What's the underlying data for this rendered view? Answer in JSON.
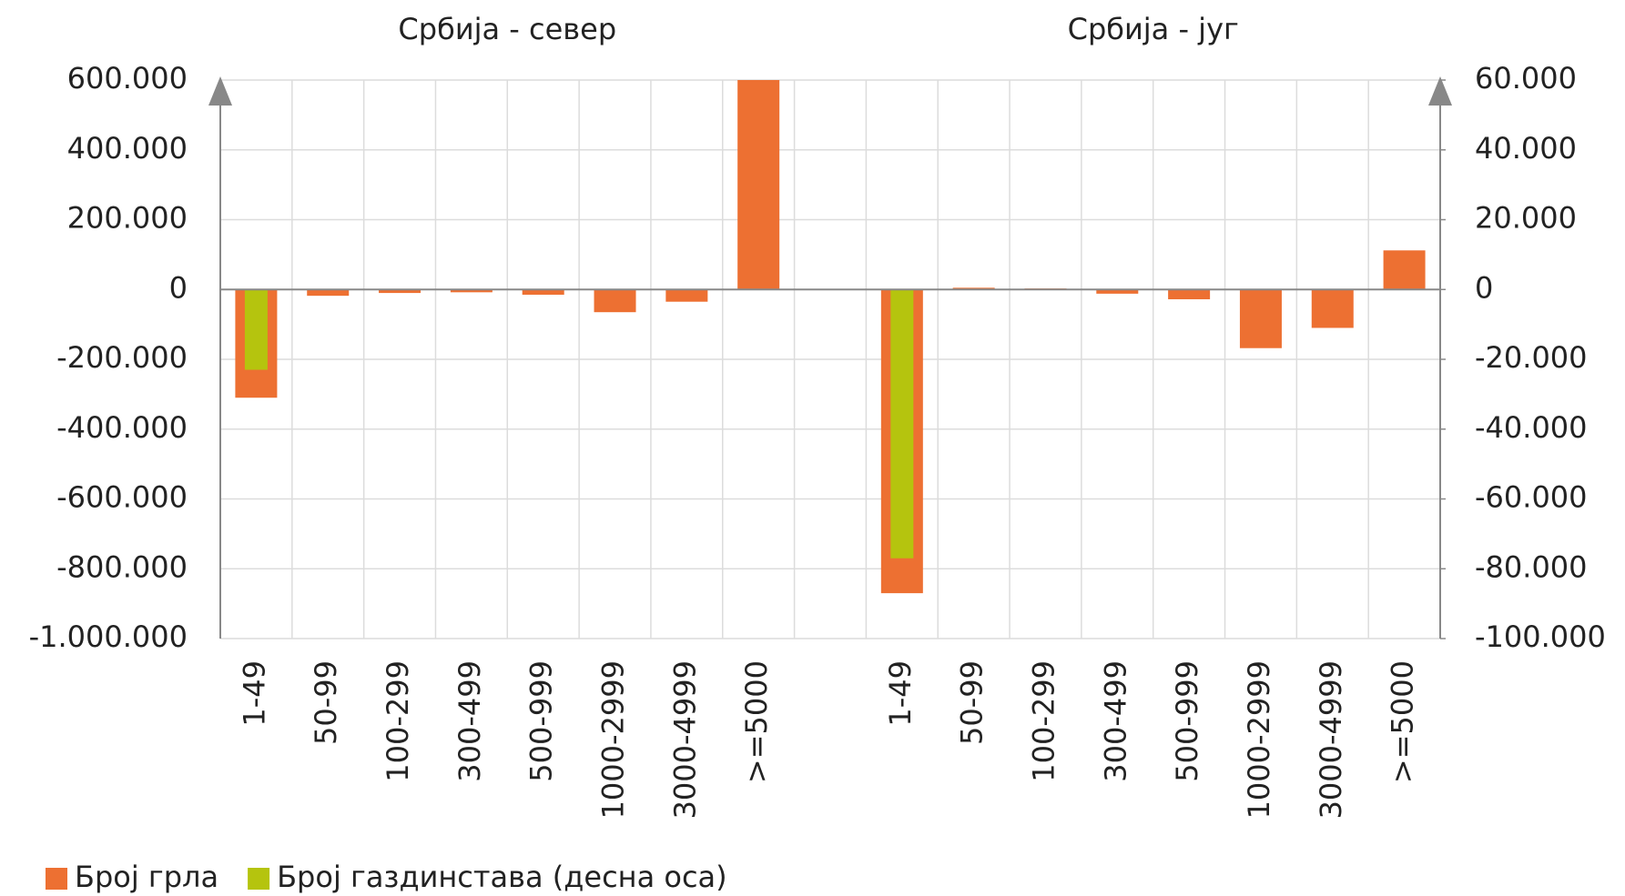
{
  "chart_data": {
    "type": "bar",
    "panel_titles": [
      "Србија - север",
      "Србија - југ"
    ],
    "categories": [
      "1-49",
      "50-99",
      "100-299",
      "300-499",
      "500-999",
      "1000-2999",
      "3000-4999",
      ">=5000",
      null,
      "1-49",
      "50-99",
      "100-299",
      "300-499",
      "500-999",
      "1000-2999",
      "3000-4999",
      ">=5000"
    ],
    "series": [
      {
        "name": "Број грла",
        "color": "#ed7032",
        "values": [
          -310000,
          -18000,
          -10000,
          -8000,
          -15000,
          -65000,
          -35000,
          600000,
          null,
          -870000,
          5000,
          3000,
          -12000,
          -28000,
          -168000,
          -110000,
          112000
        ]
      },
      {
        "name": "Број газдинстава (десна оса)",
        "color": "#b5c40e",
        "axis": "y2",
        "values": [
          -23000,
          0,
          0,
          0,
          0,
          0,
          0,
          0,
          null,
          -77000,
          0,
          0,
          0,
          0,
          0,
          0,
          0
        ]
      }
    ],
    "ylim": [
      -1000000,
      600000
    ],
    "yticks": [
      {
        "value": -1000000,
        "label": "-1.000.000"
      },
      {
        "value": -800000,
        "label": "-800.000"
      },
      {
        "value": -600000,
        "label": "-600.000"
      },
      {
        "value": -400000,
        "label": "-400.000"
      },
      {
        "value": -200000,
        "label": "-200.000"
      },
      0,
      {
        "value": 200000,
        "label": "200.000"
      },
      {
        "value": 400000,
        "label": "400.000"
      },
      {
        "value": 600000,
        "label": "600.000"
      }
    ],
    "y2lim": [
      -100000,
      60000
    ],
    "y2ticks": [
      {
        "value": -100000,
        "label": "-100.000"
      },
      {
        "value": -80000,
        "label": "-80.000"
      },
      {
        "value": -60000,
        "label": "-60.000"
      },
      {
        "value": -40000,
        "label": "-40.000"
      },
      {
        "value": -20000,
        "label": "-20.000"
      },
      0,
      {
        "value": 20000,
        "label": "20.000"
      },
      {
        "value": 40000,
        "label": "40.000"
      },
      {
        "value": 60000,
        "label": "60.000"
      }
    ],
    "grid": true,
    "legend": "bottom-left"
  }
}
